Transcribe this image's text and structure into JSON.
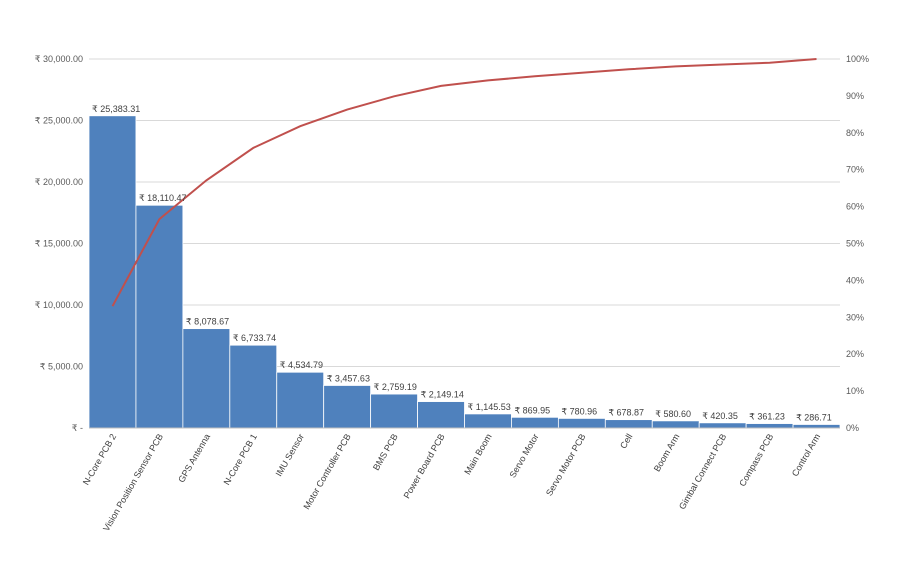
{
  "chart_data": {
    "type": "bar",
    "categories": [
      "N-Core PCB 2",
      "Vision Position Sensor PCB",
      "GPS Antenna",
      "N-Core PCB 1",
      "IMU Sensor",
      "Motor Controller PCB",
      "BMS PCB",
      "Power Board PCB",
      "Main Boom",
      "Servo Motor",
      "Servo Motor PCB",
      "Cell",
      "Boom Arm",
      "Gimbal Connect PCB",
      "Compass PCB",
      "Control Arm"
    ],
    "values": [
      25383.31,
      18110.47,
      8078.67,
      6733.74,
      4534.79,
      3457.63,
      2759.19,
      2149.14,
      1145.53,
      869.95,
      780.96,
      678.87,
      580.6,
      420.35,
      361.23,
      286.71
    ],
    "data_labels": [
      "₹ 25,383.31",
      "₹ 18,110.47",
      "₹ 8,078.67",
      "₹ 6,733.74",
      "₹ 4,534.79",
      "₹ 3,457.63",
      "₹ 2,759.19",
      "₹ 2,149.14",
      "₹ 1,145.53",
      "₹ 869.95",
      "₹ 780.96",
      "₹ 678.87",
      "₹ 580.60",
      "₹ 420.35",
      "₹ 361.23",
      "₹ 286.71"
    ],
    "series": [
      {
        "type": "bar",
        "values": [
          25383.31,
          18110.47,
          8078.67,
          6733.74,
          4534.79,
          3457.63,
          2759.19,
          2149.14,
          1145.53,
          869.95,
          780.96,
          678.87,
          580.6,
          420.35,
          361.23,
          286.71
        ],
        "color": "#4f81bd"
      },
      {
        "type": "line",
        "axis": "secondary",
        "values": [
          33.0,
          56.6,
          67.1,
          75.9,
          81.8,
          86.3,
          89.9,
          92.7,
          94.2,
          95.3,
          96.3,
          97.2,
          98.0,
          98.5,
          99.0,
          100.0
        ],
        "color": "#c0504d"
      }
    ],
    "title": "",
    "xlabel": "",
    "ylabel": "",
    "ylim": [
      0,
      30000
    ],
    "y_ticks": [
      0,
      5000,
      10000,
      15000,
      20000,
      25000,
      30000
    ],
    "y_tick_labels": [
      "₹ -",
      "₹ 5,000.00",
      "₹ 10,000.00",
      "₹ 15,000.00",
      "₹ 20,000.00",
      "₹ 25,000.00",
      "₹ 30,000.00"
    ],
    "y2lim": [
      0,
      100
    ],
    "y2_ticks": [
      0,
      10,
      20,
      30,
      40,
      50,
      60,
      70,
      80,
      90,
      100
    ],
    "y2_tick_labels": [
      "0%",
      "10%",
      "20%",
      "30%",
      "40%",
      "50%",
      "60%",
      "70%",
      "80%",
      "90%",
      "100%"
    ],
    "grid": true,
    "legend": "none"
  }
}
